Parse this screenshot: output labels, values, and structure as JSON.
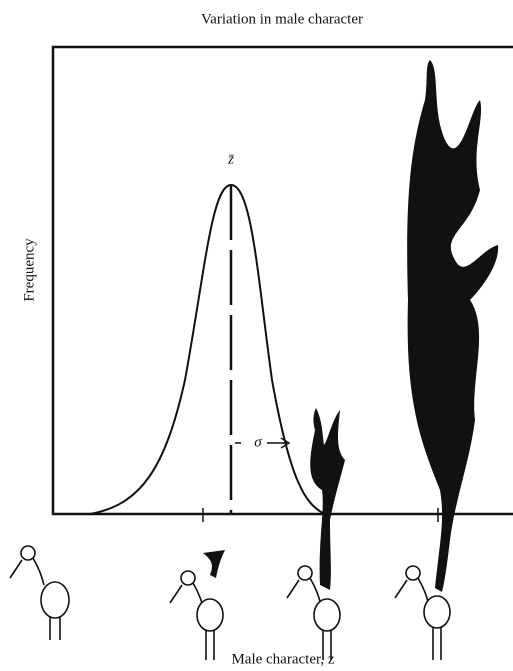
{
  "title": "Variation in male character",
  "axes": {
    "y_label": "Frequency",
    "x_label": "Male character, z"
  },
  "annotations": {
    "mean": "z̄",
    "spread": "σ"
  }
}
